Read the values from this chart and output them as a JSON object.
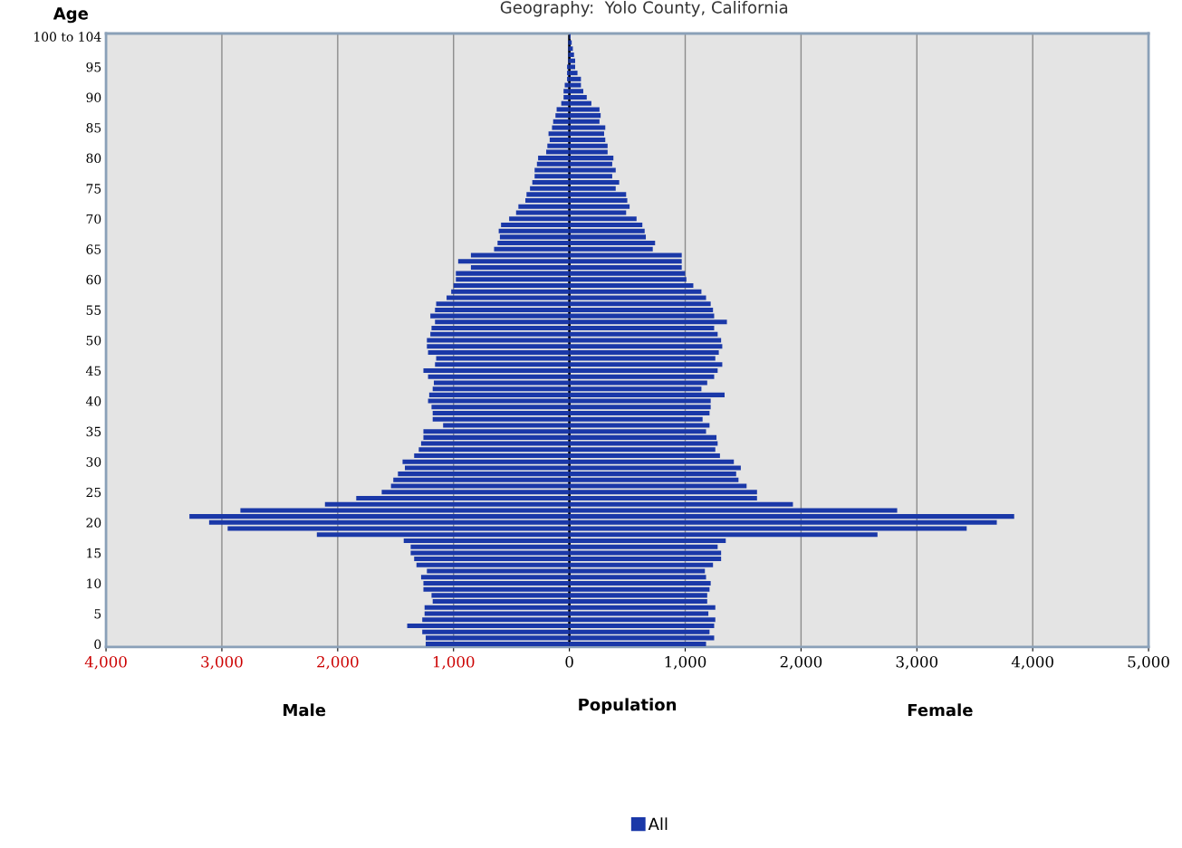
{
  "chart_data": {
    "type": "bar",
    "orientation": "horizontal",
    "stacked": true,
    "title": "Geography:  Yolo County, California",
    "ylabel": "Age",
    "xlabel": "Population",
    "annotations": [
      "Male",
      "Female"
    ],
    "categories": [
      "100 to 104",
      null,
      null,
      null,
      null,
      "95",
      null,
      null,
      null,
      null,
      "90",
      null,
      null,
      null,
      null,
      "85",
      null,
      null,
      null,
      null,
      "80",
      null,
      null,
      null,
      null,
      "75",
      null,
      null,
      null,
      null,
      "70",
      null,
      null,
      null,
      null,
      "65",
      null,
      null,
      null,
      null,
      "60",
      null,
      null,
      null,
      null,
      "55",
      null,
      null,
      null,
      null,
      "50",
      null,
      null,
      null,
      null,
      "45",
      null,
      null,
      null,
      null,
      "40",
      null,
      null,
      null,
      null,
      "35",
      null,
      null,
      null,
      null,
      "30",
      null,
      null,
      null,
      null,
      "25",
      null,
      null,
      null,
      null,
      "20",
      null,
      null,
      null,
      null,
      "15",
      null,
      null,
      null,
      null,
      "10",
      null,
      null,
      null,
      null,
      "5",
      null,
      null,
      null,
      null,
      "0"
    ],
    "series": [
      {
        "name": "All",
        "color": "#1a38a8",
        "values": [
          0,
          -10,
          -10,
          -10,
          -10,
          -20,
          -20,
          -20,
          -40,
          -50,
          -50,
          -70,
          -110,
          -120,
          -140,
          -150,
          -180,
          -170,
          -190,
          -200,
          -270,
          -280,
          -300,
          -300,
          -320,
          -340,
          -370,
          -380,
          -440,
          -460,
          -520,
          -590,
          -610,
          -600,
          -620,
          -650,
          -850,
          -960,
          -850,
          -980,
          -980,
          -1000,
          -1020,
          -1060,
          -1150,
          -1160,
          -1200,
          -1160,
          -1190,
          -1200,
          -1230,
          -1230,
          -1220,
          -1150,
          -1160,
          -1260,
          -1220,
          -1170,
          -1180,
          -1210,
          -1220,
          -1190,
          -1180,
          -1180,
          -1090,
          -1260,
          -1260,
          -1280,
          -1300,
          -1340,
          -1440,
          -1420,
          -1480,
          -1520,
          -1540,
          -1620,
          -1840,
          -2110,
          -2840,
          -3280,
          -3110,
          -2950,
          -2180,
          -1430,
          -1370,
          -1370,
          -1340,
          -1320,
          -1230,
          -1280,
          -1260,
          -1260,
          -1190,
          -1180,
          -1250,
          -1250,
          -1270,
          -1400,
          -1270,
          -1240,
          -1240
        ]
      },
      {
        "color": "#1a38a8",
        "values": [
          10,
          20,
          30,
          40,
          50,
          50,
          70,
          100,
          100,
          120,
          150,
          190,
          260,
          270,
          260,
          310,
          300,
          310,
          330,
          330,
          380,
          370,
          400,
          370,
          430,
          400,
          490,
          500,
          520,
          490,
          580,
          630,
          650,
          660,
          740,
          720,
          970,
          970,
          970,
          1000,
          1010,
          1070,
          1140,
          1180,
          1220,
          1240,
          1250,
          1360,
          1250,
          1280,
          1310,
          1320,
          1290,
          1260,
          1320,
          1280,
          1250,
          1190,
          1140,
          1340,
          1220,
          1220,
          1210,
          1150,
          1210,
          1180,
          1270,
          1280,
          1260,
          1300,
          1420,
          1480,
          1440,
          1460,
          1530,
          1620,
          1620,
          1930,
          2830,
          3840,
          3690,
          3430,
          2660,
          1350,
          1280,
          1310,
          1310,
          1240,
          1170,
          1180,
          1220,
          1210,
          1190,
          1190,
          1260,
          1200,
          1260,
          1250,
          1210,
          1250,
          1180
        ]
      }
    ],
    "xlim": [
      -4000,
      5000
    ],
    "xticks": [
      {
        "value": -4000,
        "label": "4,000"
      },
      {
        "value": -3000,
        "label": "3,000"
      },
      {
        "value": -2000,
        "label": "2,000"
      },
      {
        "value": -1000,
        "label": "1,000"
      },
      0,
      {
        "value": 1000,
        "label": "1,000"
      },
      {
        "value": 2000,
        "label": "2,000"
      },
      {
        "value": 3000,
        "label": "3,000"
      },
      {
        "value": 4000,
        "label": "4,000"
      },
      {
        "value": 5000,
        "label": "5,000"
      }
    ],
    "grid": "x",
    "legend": "bottom"
  }
}
